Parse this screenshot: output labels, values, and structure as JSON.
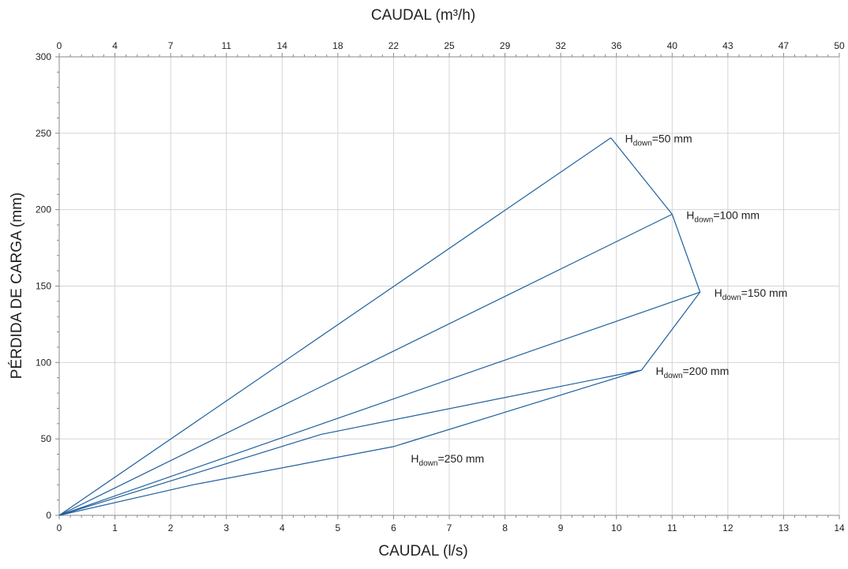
{
  "chart_data": {
    "type": "line",
    "x_axis_label": "CAUDAL (l/s)",
    "x_top_axis_label": "CAUDAL (m³/h)",
    "y_axis_label": "PÉRDIDA DE CARGA (mm)",
    "x_range": [
      0,
      14
    ],
    "y_range": [
      0,
      300
    ],
    "x_ticks": [
      {
        "value": 0,
        "label": "0"
      },
      {
        "value": 1,
        "label": "1"
      },
      {
        "value": 2,
        "label": "2"
      },
      {
        "value": 3,
        "label": "3"
      },
      {
        "value": 4,
        "label": "4"
      },
      {
        "value": 5,
        "label": "5"
      },
      {
        "value": 6,
        "label": "6"
      },
      {
        "value": 7,
        "label": "7"
      },
      {
        "value": 8,
        "label": "8"
      },
      {
        "value": 9,
        "label": "9"
      },
      {
        "value": 10,
        "label": "10"
      },
      {
        "value": 11,
        "label": "11"
      },
      {
        "value": 12,
        "label": "12"
      },
      {
        "value": 13,
        "label": "13"
      },
      {
        "value": 14,
        "label": "14"
      }
    ],
    "x_top_ticks": [
      {
        "value": 0,
        "label": "0"
      },
      {
        "value": 1,
        "label": "4"
      },
      {
        "value": 2,
        "label": "7"
      },
      {
        "value": 3,
        "label": "11"
      },
      {
        "value": 4,
        "label": "14"
      },
      {
        "value": 5,
        "label": "18"
      },
      {
        "value": 6,
        "label": "22"
      },
      {
        "value": 7,
        "label": "25"
      },
      {
        "value": 8,
        "label": "29"
      },
      {
        "value": 9,
        "label": "32"
      },
      {
        "value": 10,
        "label": "36"
      },
      {
        "value": 11,
        "label": "40"
      },
      {
        "value": 12,
        "label": "43"
      },
      {
        "value": 13,
        "label": "47"
      },
      {
        "value": 14,
        "label": "50"
      }
    ],
    "y_ticks": [
      {
        "value": 0,
        "label": "0"
      },
      {
        "value": 50,
        "label": "50"
      },
      {
        "value": 100,
        "label": "100"
      },
      {
        "value": 150,
        "label": "150"
      },
      {
        "value": 200,
        "label": "200"
      },
      {
        "value": 250,
        "label": "250"
      },
      {
        "value": 300,
        "label": "300"
      }
    ],
    "grid": true,
    "line_color": "#1f5f9e",
    "grid_color": "#d4d4d4",
    "series": [
      {
        "points": [
          [
            0,
            0
          ],
          [
            9.9,
            247
          ]
        ]
      },
      {
        "points": [
          [
            0,
            0
          ],
          [
            11.0,
            197
          ]
        ]
      },
      {
        "points": [
          [
            0,
            0
          ],
          [
            11.5,
            146
          ]
        ]
      },
      {
        "points": [
          [
            0,
            0
          ],
          [
            2.4,
            20
          ],
          [
            6.0,
            45
          ],
          [
            10.45,
            95
          ]
        ]
      },
      {
        "points": [
          [
            0,
            0
          ],
          [
            4.7,
            53
          ],
          [
            10.45,
            95
          ]
        ]
      },
      {
        "points": [
          [
            9.9,
            247
          ],
          [
            11.0,
            197
          ],
          [
            11.5,
            146
          ],
          [
            10.45,
            95
          ]
        ]
      }
    ],
    "annotations": [
      {
        "text_main": "H",
        "text_sub": "down",
        "text_rest": "=50 mm",
        "x": 9.9,
        "y": 247,
        "anchor": "right"
      },
      {
        "text_main": "H",
        "text_sub": "down",
        "text_rest": "=100 mm",
        "x": 11.0,
        "y": 197,
        "anchor": "right"
      },
      {
        "text_main": "H",
        "text_sub": "down",
        "text_rest": "=150 mm",
        "x": 11.5,
        "y": 146,
        "anchor": "right"
      },
      {
        "text_main": "H",
        "text_sub": "down",
        "text_rest": "=200 mm",
        "x": 10.45,
        "y": 95,
        "anchor": "right"
      },
      {
        "text_main": "H",
        "text_sub": "down",
        "text_rest": "=250 mm",
        "x": 6.0,
        "y": 45,
        "anchor": "below"
      }
    ]
  }
}
